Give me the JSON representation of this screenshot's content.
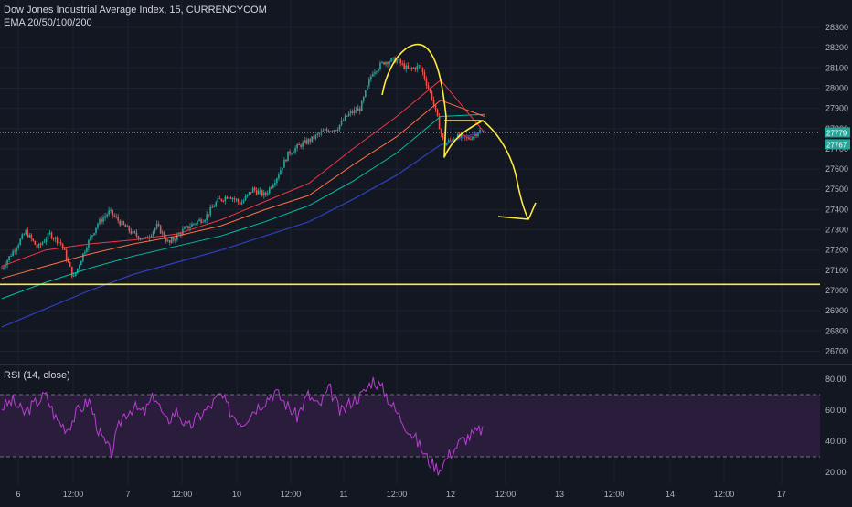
{
  "chart_data": [
    {
      "type": "candlestick",
      "title": "Dow Jones Industrial Average Index, 15, CURRENCYCOM",
      "indicator_label": "EMA 20/50/100/200",
      "ylim": [
        26600,
        28350
      ],
      "y_ticks": [
        26700,
        26800,
        26900,
        27000,
        27100,
        27200,
        27300,
        27400,
        27500,
        27600,
        27700,
        27800,
        27900,
        28000,
        28100,
        28200,
        28300
      ],
      "x_tick_labels": [
        "6",
        "12:00",
        "7",
        "12:00",
        "10",
        "12:00",
        "11",
        "12:00",
        "12",
        "12:00",
        "13",
        "12:00",
        "14",
        "12:00",
        "17"
      ],
      "price_path": [
        27110,
        27200,
        27290,
        27210,
        27280,
        27230,
        27060,
        27210,
        27330,
        27390,
        27330,
        27280,
        27250,
        27320,
        27230,
        27290,
        27330,
        27360,
        27440,
        27470,
        27430,
        27500,
        27470,
        27560,
        27680,
        27720,
        27750,
        27790,
        27800,
        27870,
        27900,
        28080,
        28130,
        28140,
        28090,
        28110,
        27950,
        27720,
        27760,
        27750,
        27790
      ],
      "ema_trend_levels": {
        "ema20": [
          27120,
          27200,
          27230,
          27250,
          27280,
          27350,
          27440,
          27530,
          27700,
          27860,
          28040,
          27780
        ],
        "ema50": [
          27060,
          27120,
          27180,
          27230,
          27270,
          27320,
          27400,
          27470,
          27620,
          27760,
          27940,
          27860
        ],
        "ema100": [
          26960,
          27040,
          27110,
          27170,
          27220,
          27270,
          27340,
          27420,
          27540,
          27680,
          27860,
          27870
        ],
        "ema200": [
          26820,
          26910,
          27000,
          27080,
          27140,
          27200,
          27270,
          27340,
          27450,
          27570,
          27720,
          27790
        ]
      },
      "horizontal_level": 27030,
      "current_price_marker": 27779,
      "price_tag_1": "27779",
      "price_tag_2": "27767",
      "colors": {
        "up": "#26a69a",
        "down": "#ef5350",
        "ema20": "#f23645",
        "ema50": "#ff7043",
        "ema100": "#00bfa5",
        "ema200": "#2e3fbf",
        "drawing": "#ffeb3b"
      },
      "grid": true
    },
    {
      "type": "line",
      "title": "RSI (14, close)",
      "ylim": [
        13,
        86
      ],
      "y_ticks": [
        20.0,
        40.0,
        60.0,
        80.0
      ],
      "y_tick_labels": [
        "20.00",
        "40.00",
        "60.00",
        "80.00"
      ],
      "band": [
        30,
        70
      ],
      "rsi_path": [
        62,
        66,
        58,
        64,
        70,
        54,
        48,
        60,
        66,
        44,
        32,
        56,
        62,
        58,
        70,
        52,
        60,
        48,
        56,
        62,
        70,
        58,
        52,
        60,
        66,
        72,
        64,
        56,
        70,
        62,
        74,
        58,
        66,
        70,
        80,
        72,
        60,
        50,
        40,
        28,
        22,
        32,
        40,
        44,
        48
      ],
      "colors": {
        "line": "#b73fcf",
        "band_fill": "#2a1d3c",
        "band_lines": "#8c8c99"
      }
    }
  ]
}
